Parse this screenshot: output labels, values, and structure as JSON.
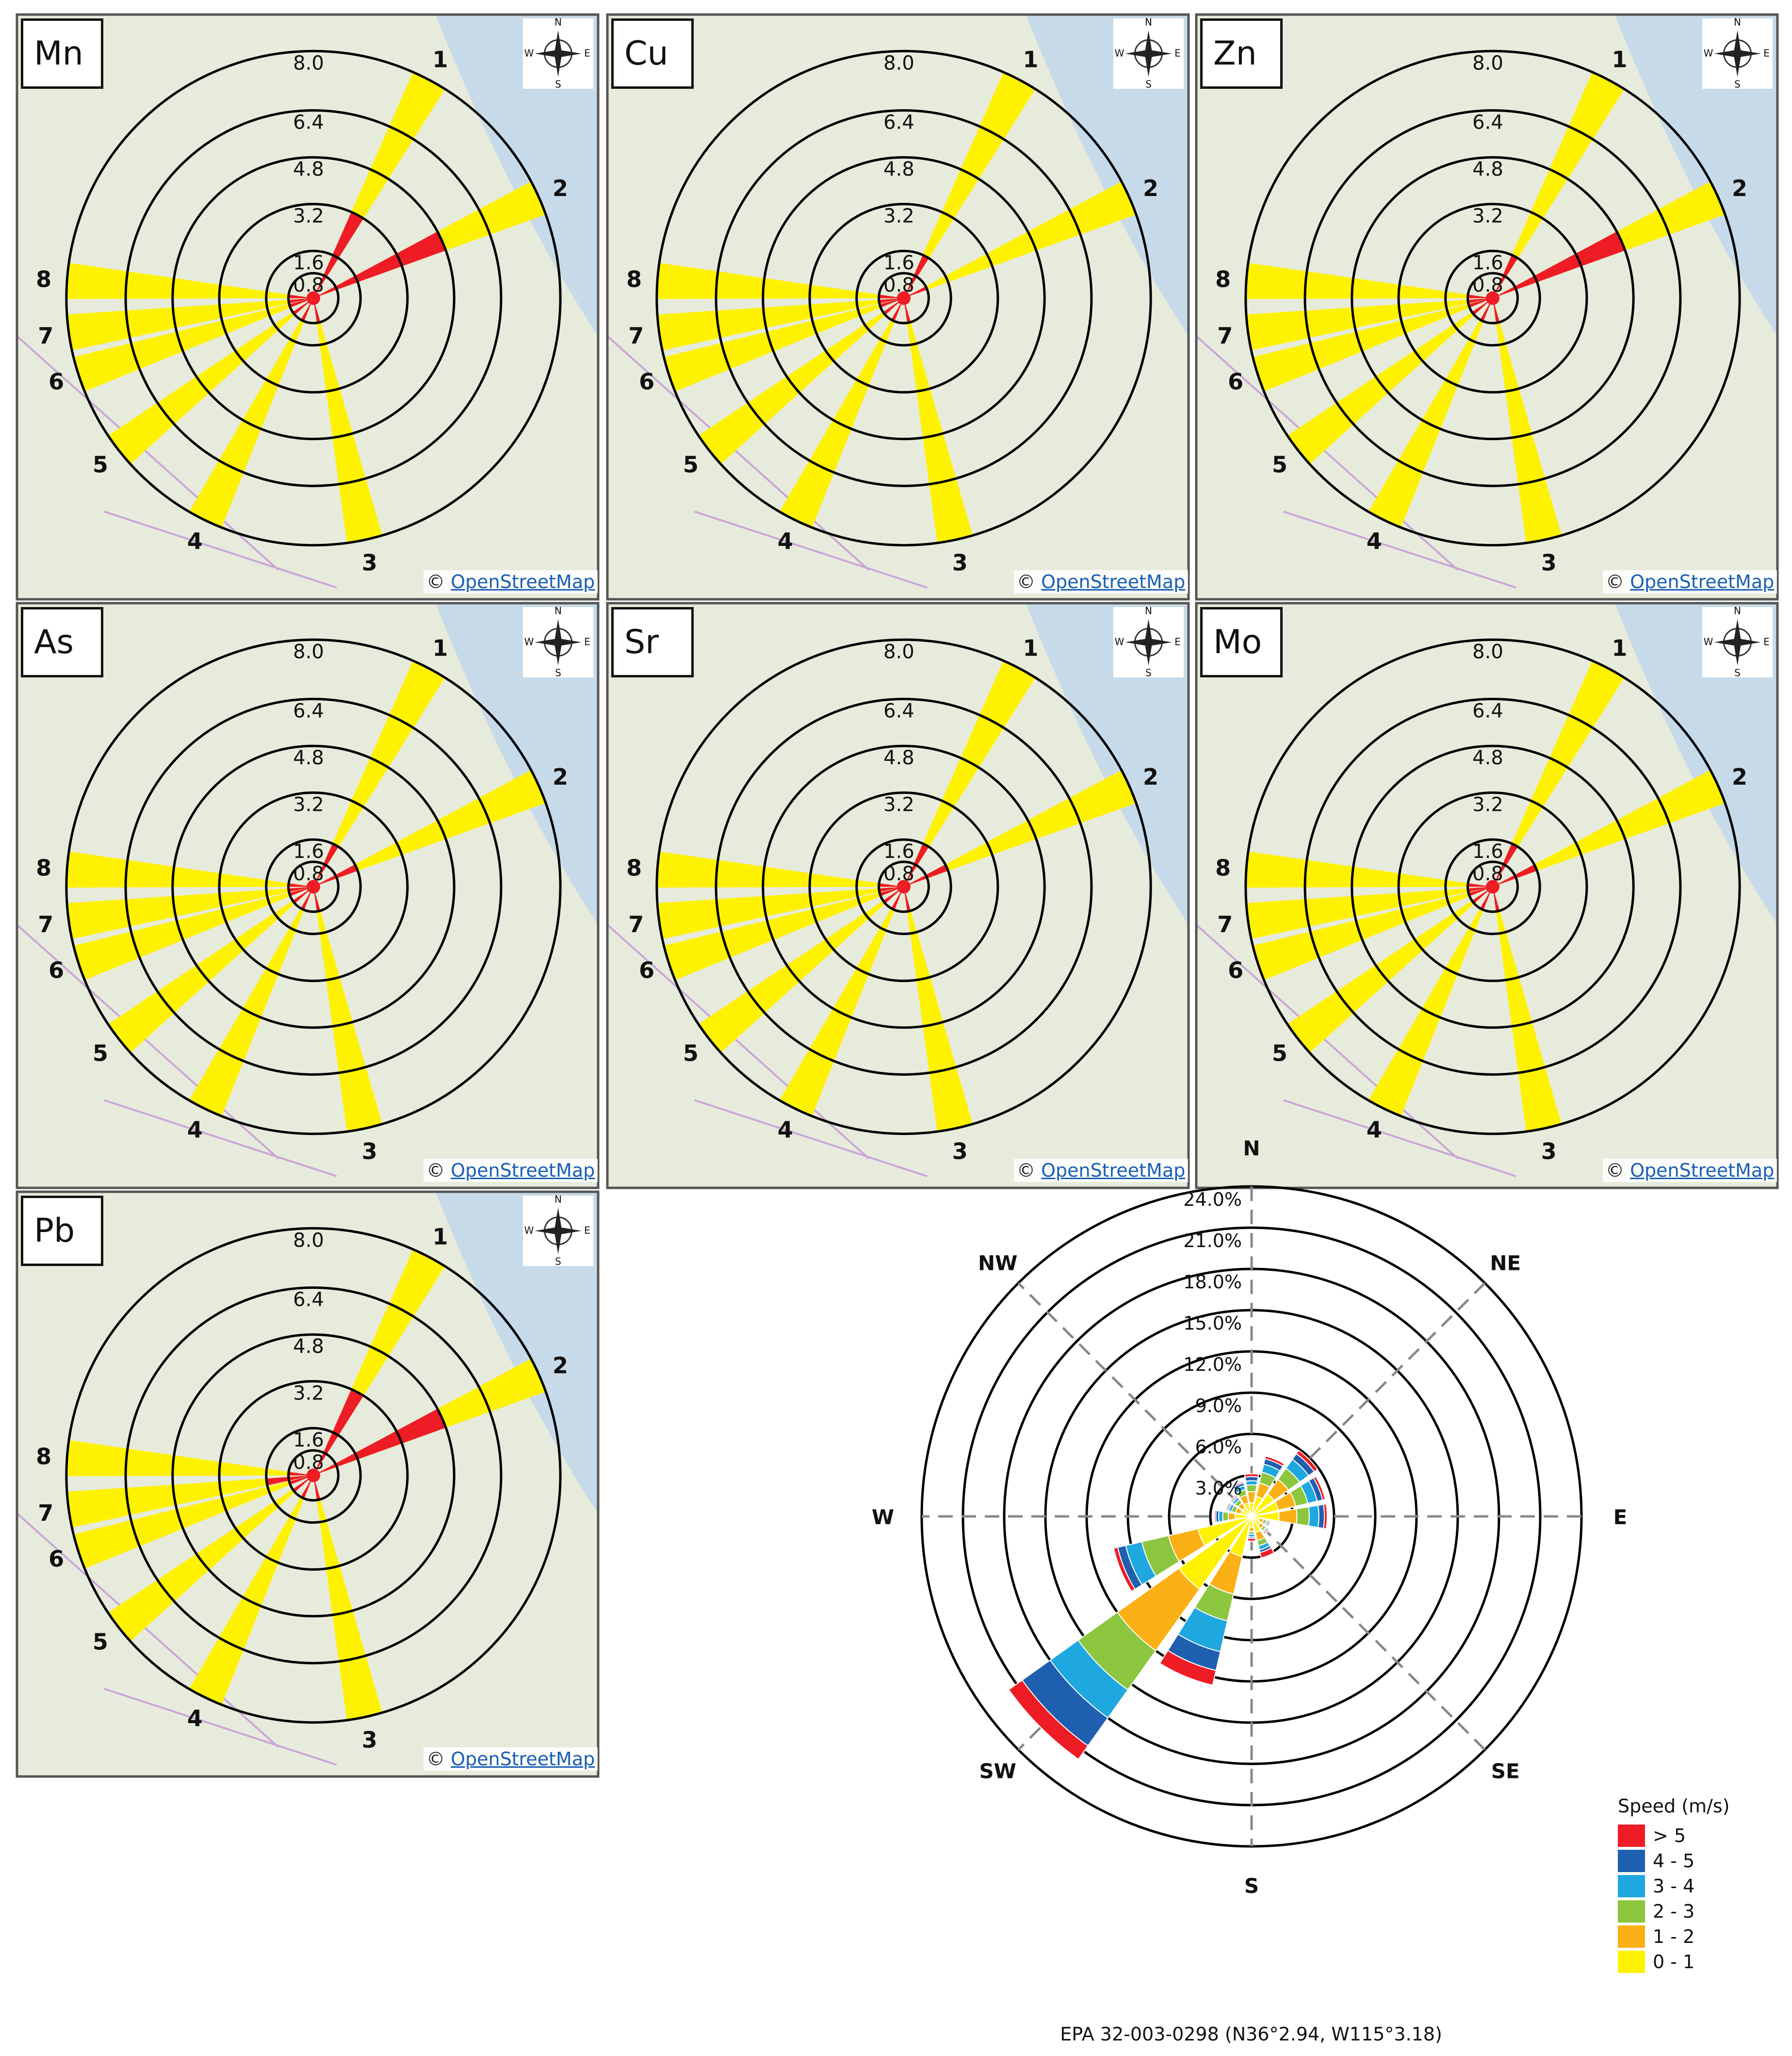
{
  "colors": {
    "map_bg": "#e7ebdc",
    "ring": "#000000",
    "red": "#ee1c24",
    "yellow": "#fff200",
    "dashed_axis": "#888888"
  },
  "map_common": {
    "ring_labels": [
      "0.8",
      "1.6",
      "3.2",
      "4.8",
      "6.4",
      "8.0"
    ],
    "copyright_symbol": "©",
    "copyright_link": "OpenStreetMap",
    "compass_icon": "compass-rose-icon"
  },
  "chart_data": [
    {
      "type": "polar-bar",
      "element": "Mn",
      "rings": [
        0.8,
        1.6,
        3.2,
        4.8,
        6.4,
        8.0
      ],
      "sectors": [
        {
          "label": "1",
          "yellow": 8.0,
          "red": 3.2
        },
        {
          "label": "2",
          "yellow": 8.0,
          "red": 4.8
        },
        {
          "label": "3",
          "yellow": 8.0,
          "red": 0.8
        },
        {
          "label": "4",
          "yellow": 8.0,
          "red": 0.8
        },
        {
          "label": "5",
          "yellow": 8.0,
          "red": 0.8
        },
        {
          "label": "6",
          "yellow": 8.0,
          "red": 0.8
        },
        {
          "label": "7",
          "yellow": 8.0,
          "red": 0.8
        },
        {
          "label": "8",
          "yellow": 8.0,
          "red": 0.8
        }
      ]
    },
    {
      "type": "polar-bar",
      "element": "Cu",
      "rings": [
        0.8,
        1.6,
        3.2,
        4.8,
        6.4,
        8.0
      ],
      "sectors": [
        {
          "label": "1",
          "yellow": 8.0,
          "red": 1.6
        },
        {
          "label": "2",
          "yellow": 8.0,
          "red": 0.8
        },
        {
          "label": "3",
          "yellow": 8.0,
          "red": 0.8
        },
        {
          "label": "4",
          "yellow": 8.0,
          "red": 0.8
        },
        {
          "label": "5",
          "yellow": 8.0,
          "red": 0.8
        },
        {
          "label": "6",
          "yellow": 8.0,
          "red": 0.8
        },
        {
          "label": "7",
          "yellow": 8.0,
          "red": 0.8
        },
        {
          "label": "8",
          "yellow": 8.0,
          "red": 0.8
        }
      ]
    },
    {
      "type": "polar-bar",
      "element": "Zn",
      "rings": [
        0.8,
        1.6,
        3.2,
        4.8,
        6.4,
        8.0
      ],
      "sectors": [
        {
          "label": "1",
          "yellow": 8.0,
          "red": 1.6
        },
        {
          "label": "2",
          "yellow": 8.0,
          "red": 4.8
        },
        {
          "label": "3",
          "yellow": 8.0,
          "red": 0.8
        },
        {
          "label": "4",
          "yellow": 8.0,
          "red": 0.8
        },
        {
          "label": "5",
          "yellow": 8.0,
          "red": 0.8
        },
        {
          "label": "6",
          "yellow": 8.0,
          "red": 0.8
        },
        {
          "label": "7",
          "yellow": 8.0,
          "red": 0.8
        },
        {
          "label": "8",
          "yellow": 8.0,
          "red": 0.8
        }
      ]
    },
    {
      "type": "polar-bar",
      "element": "As",
      "rings": [
        0.8,
        1.6,
        3.2,
        4.8,
        6.4,
        8.0
      ],
      "sectors": [
        {
          "label": "1",
          "yellow": 8.0,
          "red": 1.6
        },
        {
          "label": "2",
          "yellow": 8.0,
          "red": 1.6
        },
        {
          "label": "3",
          "yellow": 8.0,
          "red": 0.8
        },
        {
          "label": "4",
          "yellow": 8.0,
          "red": 0.8
        },
        {
          "label": "5",
          "yellow": 8.0,
          "red": 0.8
        },
        {
          "label": "6",
          "yellow": 8.0,
          "red": 0.8
        },
        {
          "label": "7",
          "yellow": 8.0,
          "red": 0.8
        },
        {
          "label": "8",
          "yellow": 8.0,
          "red": 0.8
        }
      ]
    },
    {
      "type": "polar-bar",
      "element": "Sr",
      "rings": [
        0.8,
        1.6,
        3.2,
        4.8,
        6.4,
        8.0
      ],
      "sectors": [
        {
          "label": "1",
          "yellow": 8.0,
          "red": 1.6
        },
        {
          "label": "2",
          "yellow": 8.0,
          "red": 1.6
        },
        {
          "label": "3",
          "yellow": 8.0,
          "red": 0.8
        },
        {
          "label": "4",
          "yellow": 8.0,
          "red": 0.8
        },
        {
          "label": "5",
          "yellow": 8.0,
          "red": 0.8
        },
        {
          "label": "6",
          "yellow": 8.0,
          "red": 0.8
        },
        {
          "label": "7",
          "yellow": 8.0,
          "red": 0.8
        },
        {
          "label": "8",
          "yellow": 8.0,
          "red": 0.8
        }
      ]
    },
    {
      "type": "polar-bar",
      "element": "Mo",
      "rings": [
        0.8,
        1.6,
        3.2,
        4.8,
        6.4,
        8.0
      ],
      "sectors": [
        {
          "label": "1",
          "yellow": 8.0,
          "red": 1.6
        },
        {
          "label": "2",
          "yellow": 8.0,
          "red": 1.6
        },
        {
          "label": "3",
          "yellow": 8.0,
          "red": 0.8
        },
        {
          "label": "4",
          "yellow": 8.0,
          "red": 0.8
        },
        {
          "label": "5",
          "yellow": 8.0,
          "red": 0.8
        },
        {
          "label": "6",
          "yellow": 8.0,
          "red": 0.8
        },
        {
          "label": "7",
          "yellow": 8.0,
          "red": 0.8
        },
        {
          "label": "8",
          "yellow": 8.0,
          "red": 0.8
        }
      ]
    },
    {
      "type": "polar-bar",
      "element": "Pb",
      "rings": [
        0.8,
        1.6,
        3.2,
        4.8,
        6.4,
        8.0
      ],
      "sectors": [
        {
          "label": "1",
          "yellow": 8.0,
          "red": 3.2
        },
        {
          "label": "2",
          "yellow": 8.0,
          "red": 4.8
        },
        {
          "label": "3",
          "yellow": 8.0,
          "red": 0.8
        },
        {
          "label": "4",
          "yellow": 8.0,
          "red": 0.8
        },
        {
          "label": "5",
          "yellow": 8.0,
          "red": 0.8
        },
        {
          "label": "6",
          "yellow": 8.0,
          "red": 0.8
        },
        {
          "label": "7",
          "yellow": 8.0,
          "red": 1.6
        },
        {
          "label": "8",
          "yellow": 8.0,
          "red": 0.8
        }
      ]
    },
    {
      "type": "wind-rose",
      "caption": "EPA 32-003-0298 (N36°2.94, W115°3.18)",
      "directions_labels": [
        "N",
        "NE",
        "E",
        "SE",
        "S",
        "SW",
        "W",
        "NW"
      ],
      "rings_pct": [
        3.0,
        6.0,
        9.0,
        12.0,
        15.0,
        18.0,
        21.0,
        24.0
      ],
      "ring_labels": [
        "3.0%",
        "6.0%",
        "9.0%",
        "12.0%",
        "15.0%",
        "18.0%",
        "21.0%",
        "24.0%"
      ],
      "legend_title": "Speed (m/s)",
      "speed_bins": [
        {
          "label": "> 5",
          "color": "#ee1c24"
        },
        {
          "label": "4 - 5",
          "color": "#1f5fb0"
        },
        {
          "label": "3 - 4",
          "color": "#1fa8e0"
        },
        {
          "label": "2 - 3",
          "color": "#8cc63f"
        },
        {
          "label": "1 - 2",
          "color": "#fbb016"
        },
        {
          "label": "0 - 1",
          "color": "#fff200"
        }
      ],
      "bins_order_inner_to_outer": [
        "0 - 1",
        "1 - 2",
        "2 - 3",
        "3 - 4",
        "4 - 5",
        "> 5"
      ],
      "petals": [
        {
          "dir_deg": 0,
          "pct": [
            1.0,
            0.8,
            0.5,
            0.3,
            0.3,
            0.2
          ]
        },
        {
          "dir_deg": 22.5,
          "pct": [
            1.5,
            1.0,
            0.8,
            0.6,
            0.4,
            0.2
          ]
        },
        {
          "dir_deg": 45,
          "pct": [
            2.0,
            1.3,
            1.0,
            0.8,
            0.5,
            0.3
          ]
        },
        {
          "dir_deg": 67.5,
          "pct": [
            2.0,
            1.3,
            0.9,
            0.7,
            0.4,
            0.2
          ]
        },
        {
          "dir_deg": 90,
          "pct": [
            2.0,
            1.3,
            0.9,
            0.7,
            0.4,
            0.2
          ]
        },
        {
          "dir_deg": 112.5,
          "pct": [
            0.6,
            0.3,
            0.2,
            0.1,
            0.1,
            0.1
          ]
        },
        {
          "dir_deg": 135,
          "pct": [
            0.8,
            0.3,
            0.2,
            0.1,
            0.1,
            0.1
          ]
        },
        {
          "dir_deg": 157.5,
          "pct": [
            1.2,
            0.6,
            0.4,
            0.3,
            0.2,
            0.4
          ]
        },
        {
          "dir_deg": 180,
          "pct": [
            0.8,
            0.3,
            0.2,
            0.2,
            0.1,
            0.2
          ]
        },
        {
          "dir_deg": 202.5,
          "pct": [
            3.0,
            2.8,
            2.0,
            2.3,
            1.4,
            1.1
          ]
        },
        {
          "dir_deg": 225,
          "pct": [
            6.5,
            5.5,
            3.5,
            2.5,
            2.5,
            1.2
          ]
        },
        {
          "dir_deg": 247.5,
          "pct": [
            4.0,
            2.2,
            2.0,
            1.2,
            0.6,
            0.3
          ]
        },
        {
          "dir_deg": 270,
          "pct": [
            1.2,
            0.5,
            0.4,
            0.3,
            0.2,
            0.1
          ]
        },
        {
          "dir_deg": 292.5,
          "pct": [
            0.8,
            0.4,
            0.3,
            0.2,
            0.1,
            0.1
          ]
        },
        {
          "dir_deg": 315,
          "pct": [
            0.8,
            0.4,
            0.3,
            0.2,
            0.1,
            0.1
          ]
        },
        {
          "dir_deg": 337.5,
          "pct": [
            1.0,
            0.6,
            0.4,
            0.3,
            0.2,
            0.1
          ]
        }
      ]
    }
  ]
}
